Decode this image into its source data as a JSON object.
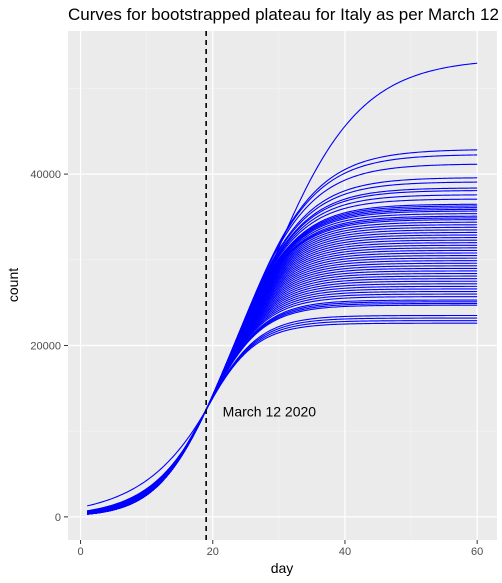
{
  "chart_data": {
    "type": "line",
    "title": "Curves for bootstrapped plateau for Italy as per March 12",
    "xlabel": "day",
    "ylabel": "count",
    "xlim": [
      -1.9,
      63
    ],
    "ylim": [
      -2700,
      56700
    ],
    "x_ticks": [
      0,
      20,
      40,
      60
    ],
    "x_tick_labels": [
      "0",
      "20",
      "40",
      "60"
    ],
    "y_ticks": [
      0,
      20000,
      40000
    ],
    "y_tick_labels": [
      "0",
      "20000",
      "40000"
    ],
    "grid": true,
    "background": "#ebebeb",
    "line_color": "#0000ff",
    "x_range": [
      1,
      60
    ],
    "curve_model": "logistic",
    "anchor": {
      "x": 19,
      "y": 12500
    },
    "plateaus": [
      53500,
      42900,
      42300,
      41200,
      39600,
      39100,
      38400,
      38100,
      37600,
      37100,
      36500,
      36300,
      36100,
      35900,
      35700,
      35400,
      35100,
      34900,
      34700,
      34400,
      34100,
      33800,
      33500,
      33200,
      32900,
      32600,
      32300,
      32000,
      31700,
      31400,
      31100,
      30800,
      30500,
      30200,
      29900,
      29600,
      29300,
      29000,
      28700,
      28400,
      28100,
      27800,
      27500,
      27200,
      26900,
      26600,
      26300,
      26000,
      25700,
      25300,
      25100,
      24900,
      24700,
      23500,
      23200,
      22900,
      22600
    ],
    "reference_line": {
      "x": 19,
      "style": "dashed",
      "color": "#000000"
    },
    "annotation": {
      "text": "March 12 2020",
      "x": 21.5,
      "y": 12300
    }
  }
}
